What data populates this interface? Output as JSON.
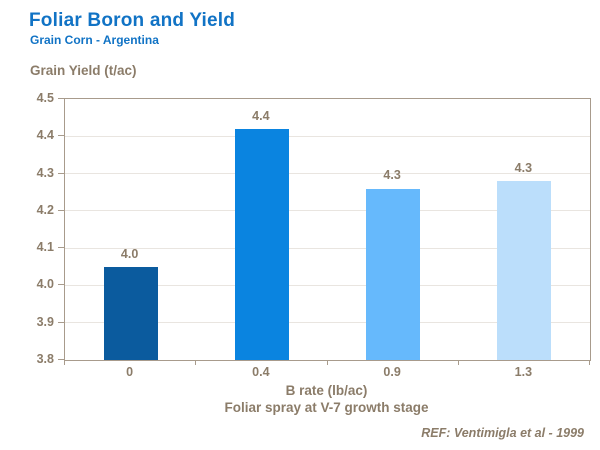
{
  "header": {
    "title": "Foliar Boron and Yield",
    "subtitle": "Grain Corn - Argentina"
  },
  "footer": {
    "ref": "REF: Ventimigla et al - 1999"
  },
  "colors": {
    "title_blue": "#1173C5",
    "text_brown": "#8B7C69",
    "grid": "#E9E5E0",
    "plot_border": "#A89B8C",
    "background": "#FFFFFF"
  },
  "chart_data": {
    "type": "bar",
    "title": "Foliar Boron and Yield",
    "subtitle": "Grain Corn - Argentina",
    "ylabel": "Grain Yield (t/ac)",
    "xlabel": "B rate (lb/ac)",
    "xlabel2": "Foliar spray at V-7 growth stage",
    "categories": [
      "0",
      "0.4",
      "0.9",
      "1.3"
    ],
    "values": [
      4.05,
      4.42,
      4.26,
      4.28
    ],
    "value_labels": [
      "4.0",
      "4.4",
      "4.3",
      "4.3"
    ],
    "bar_colors": [
      "#0B5B9E",
      "#0A84E0",
      "#66B9FC",
      "#BBDEFB"
    ],
    "ylim": [
      3.8,
      4.5
    ],
    "yticks": [
      3.8,
      3.9,
      4.0,
      4.1,
      4.2,
      4.3,
      4.4,
      4.5
    ],
    "grid": true,
    "legend": false
  }
}
